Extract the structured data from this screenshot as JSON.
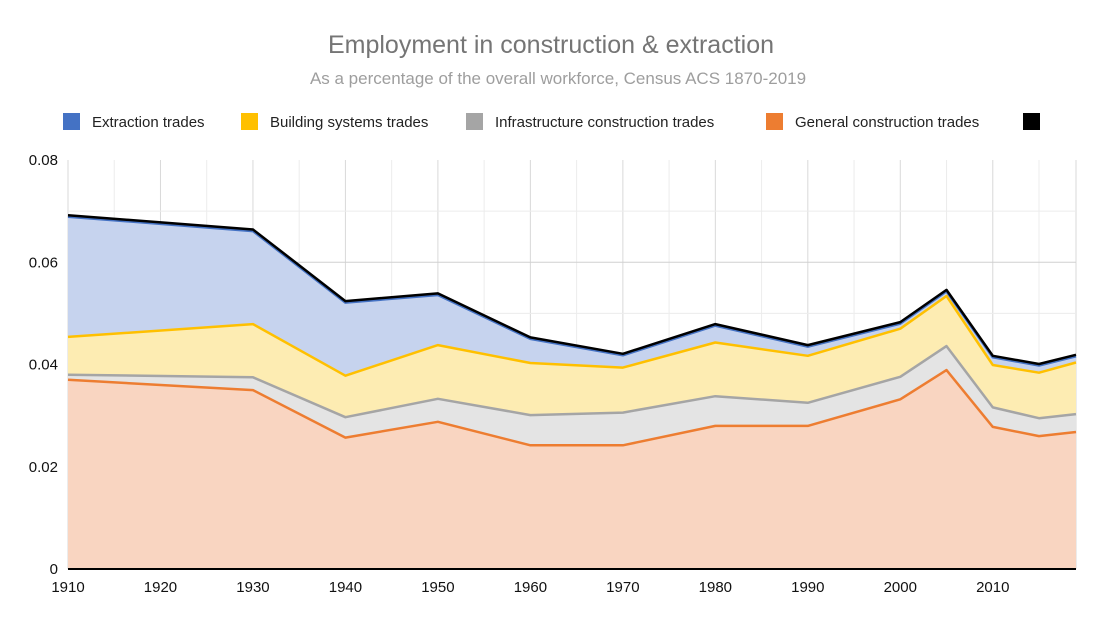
{
  "chart_data": {
    "type": "area",
    "stacked": true,
    "title": "Employment in construction & extraction",
    "subtitle": "As a percentage of the overall workforce, Census ACS 1870-2019",
    "xlabel": "",
    "ylabel": "",
    "xlim": [
      1910,
      2019
    ],
    "ylim": [
      0,
      0.08
    ],
    "x_ticks": [
      "1910",
      "1920",
      "1930",
      "1940",
      "1950",
      "1960",
      "1970",
      "1980",
      "1990",
      "2000",
      "2010"
    ],
    "y_ticks": [
      "0",
      "0.02",
      "0.04",
      "0.06",
      "0.08"
    ],
    "grid": true,
    "legend_position": "top",
    "x": [
      1910,
      1930,
      1940,
      1950,
      1960,
      1970,
      1980,
      1990,
      2000,
      2005,
      2010,
      2015,
      2019
    ],
    "series": [
      {
        "name": "General construction trades",
        "color": "#ed7d31",
        "fill": "#f9d5c1",
        "values": [
          0.037,
          0.035,
          0.0257,
          0.0288,
          0.0242,
          0.0242,
          0.028,
          0.028,
          0.0332,
          0.0389,
          0.0278,
          0.026,
          0.0268
        ]
      },
      {
        "name": "Infrastructure construction trades",
        "color": "#a5a5a5",
        "fill": "#e4e4e4",
        "values": [
          0.001,
          0.0025,
          0.004,
          0.0045,
          0.0059,
          0.0064,
          0.0058,
          0.0045,
          0.0044,
          0.0047,
          0.0038,
          0.0035,
          0.0035
        ]
      },
      {
        "name": "Building systems trades",
        "color": "#ffc000",
        "fill": "#fdecb2",
        "values": [
          0.0074,
          0.0104,
          0.0081,
          0.0105,
          0.0102,
          0.0088,
          0.0105,
          0.0092,
          0.0094,
          0.0098,
          0.0083,
          0.0089,
          0.0101
        ]
      },
      {
        "name": "Extraction trades",
        "color": "#4472c4",
        "fill": "#c6d3ee",
        "values": [
          0.0235,
          0.0182,
          0.0143,
          0.0098,
          0.0047,
          0.0024,
          0.0033,
          0.0018,
          0.001,
          0.0009,
          0.0015,
          0.0014,
          0.0012
        ]
      },
      {
        "name": "",
        "color": "#000000",
        "fill": "#000000",
        "values": [
          0.0003,
          0.0003,
          0.0003,
          0.0003,
          0.0003,
          0.0003,
          0.0003,
          0.0003,
          0.0003,
          0.0003,
          0.0003,
          0.0003,
          0.0003
        ]
      }
    ],
    "legend": [
      {
        "label": "Extraction trades",
        "color": "#4472c4"
      },
      {
        "label": "Building systems trades",
        "color": "#ffc000"
      },
      {
        "label": "Infrastructure construction trades",
        "color": "#a5a5a5"
      },
      {
        "label": "General construction trades",
        "color": "#ed7d31"
      },
      {
        "label": "",
        "color": "#000000"
      }
    ]
  }
}
